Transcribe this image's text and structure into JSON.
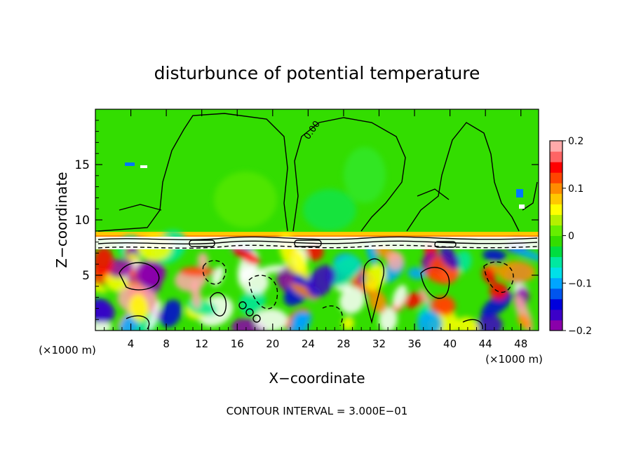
{
  "chart_data": {
    "type": "heatmap",
    "title": "disturbunce of potential temperature",
    "xlabel": "X−coordinate",
    "ylabel": "Z−coordinate",
    "x_unit": "(×1000 m)",
    "z_unit": "(×1000 m)",
    "x_range": [
      0,
      50
    ],
    "z_range": [
      0,
      20
    ],
    "x_ticks": [
      4,
      8,
      12,
      16,
      20,
      24,
      28,
      32,
      36,
      40,
      44,
      48
    ],
    "z_ticks": [
      5,
      10,
      15
    ],
    "contour_label": "0.00",
    "footer": "CONTOUR INTERVAL = 3.000E−01",
    "colorbar": {
      "range": [
        -0.2,
        0.2
      ],
      "tick_labels": [
        {
          "value": 0.2,
          "label": "0.2"
        },
        {
          "value": 0.1,
          "label": "0.1"
        },
        {
          "value": 0,
          "label": "0"
        },
        {
          "value": -0.1,
          "label": "−0.1"
        },
        {
          "value": -0.2,
          "label": "−0.2"
        }
      ],
      "colors": [
        "#8a00aa",
        "#3c00c8",
        "#0000dc",
        "#0055ee",
        "#00a5ff",
        "#00e0e8",
        "#00e8a0",
        "#00dd40",
        "#33dd00",
        "#66ee00",
        "#b4f000",
        "#ffff00",
        "#ffc800",
        "#ff8c00",
        "#ff4500",
        "#ff0000",
        "#ff6464",
        "#ffaaaa"
      ]
    },
    "grid": false,
    "legend": "right"
  }
}
